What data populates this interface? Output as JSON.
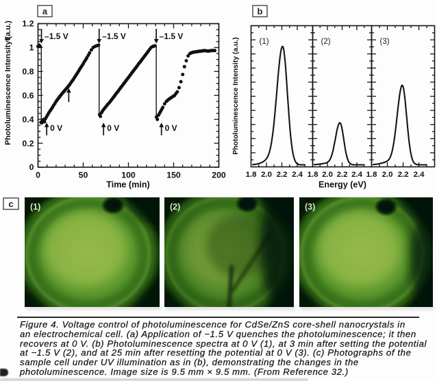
{
  "figure": {
    "panel_a_letter": "a",
    "panel_b_letter": "b",
    "panel_c_letter": "c"
  },
  "chart_data": [
    {
      "type": "scatter",
      "panel": "a",
      "xlabel": "Time (min)",
      "ylabel": "Photoluminescence Intensity (a.u.)",
      "xlim": [
        0,
        200
      ],
      "ylim": [
        0,
        1.2
      ],
      "x_ticks": [
        0,
        50,
        100,
        150,
        200
      ],
      "x_minor_step": 10,
      "y_ticks": [
        "0",
        "0.2",
        "0.4",
        "0.6",
        "0.8",
        "1",
        "1.2"
      ],
      "y_minor_step": 0.05,
      "grid": false,
      "points": [
        [
          0.0,
          1.01
        ],
        [
          1.2,
          1.02
        ],
        [
          2.4,
          1.01
        ],
        [
          3.2,
          0.375
        ],
        [
          4.2,
          0.37
        ],
        [
          5.2,
          0.385
        ],
        [
          6.2,
          0.4
        ],
        [
          7.2,
          0.38
        ],
        [
          8.2,
          0.405
        ],
        [
          9.5,
          0.422
        ],
        [
          10.7,
          0.438
        ],
        [
          12.0,
          0.455
        ],
        [
          13.3,
          0.47
        ],
        [
          14.7,
          0.485
        ],
        [
          16.0,
          0.5
        ],
        [
          17.3,
          0.517
        ],
        [
          18.7,
          0.533
        ],
        [
          20.0,
          0.55
        ],
        [
          21.2,
          0.562
        ],
        [
          22.5,
          0.575
        ],
        [
          23.8,
          0.588
        ],
        [
          25.0,
          0.6
        ],
        [
          26.2,
          0.611
        ],
        [
          27.5,
          0.623
        ],
        [
          28.8,
          0.634
        ],
        [
          30.0,
          0.645
        ],
        [
          31.2,
          0.656
        ],
        [
          32.5,
          0.667
        ],
        [
          33.8,
          0.679
        ],
        [
          35.0,
          0.69
        ],
        [
          36.2,
          0.704
        ],
        [
          37.5,
          0.718
        ],
        [
          38.8,
          0.731
        ],
        [
          40.0,
          0.745
        ],
        [
          41.2,
          0.76
        ],
        [
          42.5,
          0.775
        ],
        [
          43.8,
          0.79
        ],
        [
          45.0,
          0.805
        ],
        [
          46.2,
          0.82
        ],
        [
          47.5,
          0.835
        ],
        [
          48.8,
          0.85
        ],
        [
          50.0,
          0.865
        ],
        [
          51.3,
          0.882
        ],
        [
          52.7,
          0.898
        ],
        [
          54.0,
          0.915
        ],
        [
          55.5,
          0.935
        ],
        [
          57.0,
          0.955
        ],
        [
          59.0,
          0.98
        ],
        [
          61.0,
          1.0
        ],
        [
          63.0,
          1.01
        ],
        [
          65.0,
          1.015
        ],
        [
          67,
          1.02
        ],
        [
          68,
          0.44
        ],
        [
          69,
          0.425
        ],
        [
          70.2,
          0.455
        ],
        [
          71.4,
          0.47
        ],
        [
          72.9,
          0.485
        ],
        [
          74.5,
          0.5
        ],
        [
          76.0,
          0.515
        ],
        [
          77.3,
          0.527
        ],
        [
          78.7,
          0.538
        ],
        [
          80.0,
          0.55
        ],
        [
          81.2,
          0.562
        ],
        [
          82.5,
          0.575
        ],
        [
          83.8,
          0.588
        ],
        [
          85.0,
          0.6
        ],
        [
          86.2,
          0.613
        ],
        [
          87.5,
          0.625
        ],
        [
          88.8,
          0.637
        ],
        [
          90.0,
          0.65
        ],
        [
          91.2,
          0.662
        ],
        [
          92.5,
          0.675
        ],
        [
          93.8,
          0.688
        ],
        [
          95.0,
          0.7
        ],
        [
          96.2,
          0.712
        ],
        [
          97.5,
          0.725
        ],
        [
          98.8,
          0.738
        ],
        [
          100.0,
          0.75
        ],
        [
          101.2,
          0.762
        ],
        [
          102.5,
          0.775
        ],
        [
          103.8,
          0.788
        ],
        [
          105.0,
          0.8
        ],
        [
          106.2,
          0.812
        ],
        [
          107.5,
          0.825
        ],
        [
          108.8,
          0.838
        ],
        [
          110.0,
          0.85
        ],
        [
          111.2,
          0.863
        ],
        [
          112.5,
          0.875
        ],
        [
          113.8,
          0.887
        ],
        [
          115.0,
          0.9
        ],
        [
          116.3,
          0.913
        ],
        [
          117.7,
          0.927
        ],
        [
          119.0,
          0.94
        ],
        [
          120.5,
          0.955
        ],
        [
          122.0,
          0.97
        ],
        [
          123.5,
          0.985
        ],
        [
          125.0,
          1.0
        ],
        [
          127.0,
          1.01
        ],
        [
          128.2,
          1.012
        ],
        [
          129.5,
          1.015
        ],
        [
          131,
          0.42
        ],
        [
          132,
          0.4
        ],
        [
          133.2,
          0.435
        ],
        [
          134.4,
          0.45
        ],
        [
          135.6,
          0.467
        ],
        [
          136.8,
          0.483
        ],
        [
          138.0,
          0.5
        ],
        [
          140.0,
          0.53
        ],
        [
          142.0,
          0.55
        ],
        [
          143.5,
          0.56
        ],
        [
          145.0,
          0.57
        ],
        [
          146.5,
          0.577
        ],
        [
          148.0,
          0.585
        ],
        [
          149.5,
          0.593
        ],
        [
          151.0,
          0.6
        ],
        [
          152.5,
          0.615
        ],
        [
          154.0,
          0.63
        ],
        [
          156.0,
          0.665
        ],
        [
          158.0,
          0.715
        ],
        [
          160.0,
          0.775
        ],
        [
          162.0,
          0.84
        ],
        [
          164.0,
          0.89
        ],
        [
          166.0,
          0.93
        ],
        [
          168.0,
          0.95
        ],
        [
          169.5,
          0.955
        ],
        [
          171.0,
          0.96
        ],
        [
          172.3,
          0.962
        ],
        [
          173.7,
          0.963
        ],
        [
          175.0,
          0.965
        ],
        [
          176.2,
          0.966
        ],
        [
          177.5,
          0.968
        ],
        [
          178.8,
          0.969
        ],
        [
          180.0,
          0.97
        ],
        [
          181.3,
          0.972
        ],
        [
          182.7,
          0.973
        ],
        [
          184.0,
          0.975
        ],
        [
          185.3,
          0.973
        ],
        [
          186.7,
          0.972
        ],
        [
          188.0,
          0.97
        ],
        [
          189.3,
          0.972
        ],
        [
          190.7,
          0.973
        ],
        [
          192.0,
          0.975
        ],
        [
          193.8,
          0.975
        ],
        [
          195.5,
          0.975
        ]
      ],
      "drop_lines": [
        {
          "t": 3.6,
          "from": 1.01,
          "to": 0.38
        },
        {
          "t": 67.6,
          "from": 1.02,
          "to": 0.44
        },
        {
          "t": 130.8,
          "from": 1.01,
          "to": 0.42
        }
      ],
      "annotations": {
        "quench_label": "–1.5 V",
        "recover_label": "0 V",
        "quench_arrows_t": [
          3.8,
          67.6,
          130.8
        ],
        "recover_arrows_t": [
          9.6,
          72.5,
          136.5
        ],
        "mid_arrow": {
          "t": 34,
          "from": 0.545,
          "to": 0.66
        }
      }
    },
    {
      "type": "line",
      "panel": "b",
      "xlabel": "Energy (eV)",
      "ylabel": "Photoluminescence Intensity (a.u.)",
      "xlim": [
        1.8,
        2.6
      ],
      "x_ticks": [
        "1.8",
        "2.0",
        "2.2",
        "2.4"
      ],
      "x_minor_step": 0.1,
      "grid": false,
      "panels": [
        {
          "label": "(1)",
          "peak_center_eV": 2.21,
          "peak_height_rel": 1.0,
          "sigma_left_eV": 0.075,
          "sigma_right_eV": 0.062
        },
        {
          "label": "(2)",
          "peak_center_eV": 2.17,
          "peak_height_rel": 0.355,
          "sigma_left_eV": 0.062,
          "sigma_right_eV": 0.052
        },
        {
          "label": "(3)",
          "peak_center_eV": 2.19,
          "peak_height_rel": 0.672,
          "sigma_left_eV": 0.065,
          "sigma_right_eV": 0.055
        }
      ]
    }
  ],
  "panel_c": {
    "photo_labels": [
      "(1)",
      "(2)",
      "(3)"
    ],
    "colors": {
      "disc_center": "#a4cb52",
      "disc_bright": "#84ba3e",
      "disc_mid": "#63a431",
      "disc_outer": "#3d7e1e",
      "edge_dark": "#1c4a0d",
      "corner_black": "#081c04",
      "ring_dark": "#2f6b18",
      "ring_bright": "#7ab83d",
      "bubble_dark": "#061409"
    }
  },
  "caption": {
    "lines": [
      "Figure 4. Voltage control of photoluminescence for CdSe/ZnS core-shell nanocrystals in",
      "an electrochemical cell. (a) Application of −1.5 V quenches the photoluminescence; it then",
      "recovers at 0 V. (b) Photoluminescence spectra at 0 V (1), at 3 min after setting the potential",
      "at −1.5 V (2), and at 25 min after resetting the potential at 0 V (3). (c) Photographs of the",
      "sample cell under UV illumination as in (b), demonstrating the changes in the",
      "photoluminescence. Image size is 9.5 mm × 9.5 mm. (From Reference 32.)"
    ]
  }
}
